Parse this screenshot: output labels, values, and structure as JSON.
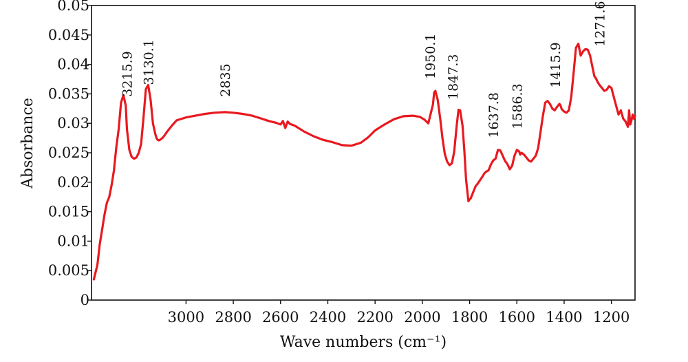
{
  "chart_data": {
    "type": "line",
    "title": "",
    "xlabel": "Wave numbers (cm⁻¹)",
    "ylabel": "Absorbance",
    "xlim": [
      3400,
      1100
    ],
    "x_reversed": true,
    "ylim": [
      0,
      0.05
    ],
    "grid": false,
    "legend": "none",
    "line_color": "#e8191f",
    "x_ticks": [
      3000,
      2800,
      2600,
      2400,
      2200,
      2000,
      1800,
      1600,
      1400,
      1200
    ],
    "x_tick_labels": [
      "3000",
      "2800",
      "2600",
      "2400",
      "2200",
      "2000",
      "1800",
      "1600",
      "1400",
      "1200"
    ],
    "y_ticks": [
      0,
      0.005,
      0.01,
      0.015,
      0.02,
      0.025,
      0.03,
      0.035,
      0.04,
      0.045,
      0.05
    ],
    "y_tick_labels": [
      "0",
      "0.005",
      "0.01",
      "0.015",
      "0.02",
      "0.025",
      "0.03",
      "0.035",
      "0.04",
      "0.045",
      "0.05"
    ],
    "series": [
      {
        "x": [
          3390,
          3375,
          3365,
          3355,
          3345,
          3335,
          3325,
          3315,
          3305,
          3295,
          3285,
          3275,
          3265,
          3255,
          3250,
          3240,
          3230,
          3220,
          3210,
          3200,
          3190,
          3180,
          3170,
          3160,
          3150,
          3140,
          3130,
          3125,
          3120,
          3115,
          3110,
          3100,
          3090,
          3080,
          3060,
          3040,
          3000,
          2960,
          2920,
          2880,
          2835,
          2800,
          2760,
          2720,
          2680,
          2650,
          2620,
          2600,
          2590,
          2580,
          2570,
          2560,
          2540,
          2500,
          2460,
          2420,
          2380,
          2340,
          2300,
          2260,
          2230,
          2200,
          2160,
          2120,
          2080,
          2040,
          2010,
          1990,
          1975,
          1965,
          1955,
          1950,
          1945,
          1935,
          1925,
          1915,
          1905,
          1895,
          1885,
          1875,
          1865,
          1855,
          1847,
          1840,
          1830,
          1822,
          1815,
          1805,
          1795,
          1785,
          1775,
          1765,
          1755,
          1745,
          1738,
          1730,
          1720,
          1710,
          1700,
          1690,
          1680,
          1670,
          1660,
          1650,
          1642,
          1637,
          1630,
          1620,
          1610,
          1600,
          1590,
          1586,
          1580,
          1570,
          1560,
          1550,
          1540,
          1530,
          1520,
          1510,
          1500,
          1490,
          1480,
          1470,
          1460,
          1450,
          1440,
          1430,
          1420,
          1416,
          1410,
          1400,
          1390,
          1380,
          1370,
          1360,
          1350,
          1340,
          1330,
          1320,
          1310,
          1300,
          1290,
          1280,
          1272,
          1265,
          1258,
          1250,
          1240,
          1230,
          1220,
          1210,
          1200,
          1190,
          1180,
          1170,
          1160,
          1150,
          1140,
          1130,
          1125,
          1120,
          1115,
          1110,
          1105,
          1100
        ],
        "y": [
          0.0035,
          0.006,
          0.0095,
          0.012,
          0.0145,
          0.0165,
          0.0175,
          0.0195,
          0.022,
          0.026,
          0.029,
          0.0335,
          0.0348,
          0.033,
          0.029,
          0.0255,
          0.0243,
          0.024,
          0.0242,
          0.025,
          0.0265,
          0.031,
          0.0358,
          0.0365,
          0.034,
          0.03,
          0.0282,
          0.0275,
          0.0272,
          0.0271,
          0.0272,
          0.0275,
          0.028,
          0.0286,
          0.0296,
          0.0305,
          0.031,
          0.0313,
          0.0316,
          0.0318,
          0.0319,
          0.0318,
          0.0316,
          0.0313,
          0.0308,
          0.0304,
          0.0301,
          0.0298,
          0.0304,
          0.0292,
          0.0303,
          0.0299,
          0.0296,
          0.0286,
          0.0278,
          0.0272,
          0.0268,
          0.0263,
          0.0262,
          0.0267,
          0.0276,
          0.0288,
          0.0298,
          0.0307,
          0.0312,
          0.0313,
          0.0311,
          0.0306,
          0.03,
          0.0316,
          0.0332,
          0.0352,
          0.0355,
          0.034,
          0.031,
          0.0275,
          0.0248,
          0.0235,
          0.0229,
          0.0232,
          0.0252,
          0.0295,
          0.0323,
          0.0322,
          0.0296,
          0.0252,
          0.0205,
          0.0168,
          0.0173,
          0.0183,
          0.0193,
          0.0198,
          0.0204,
          0.021,
          0.0215,
          0.0218,
          0.022,
          0.023,
          0.0237,
          0.024,
          0.0255,
          0.0254,
          0.0245,
          0.0236,
          0.0232,
          0.0228,
          0.0222,
          0.0228,
          0.0245,
          0.0255,
          0.0252,
          0.0247,
          0.025,
          0.0247,
          0.0242,
          0.0237,
          0.0235,
          0.024,
          0.0245,
          0.0258,
          0.0285,
          0.0312,
          0.0335,
          0.0338,
          0.0333,
          0.0325,
          0.0322,
          0.0328,
          0.0333,
          0.0331,
          0.0324,
          0.032,
          0.0318,
          0.0322,
          0.0345,
          0.0385,
          0.0428,
          0.0435,
          0.0415,
          0.0422,
          0.0426,
          0.0425,
          0.0415,
          0.0395,
          0.038,
          0.0376,
          0.037,
          0.0365,
          0.036,
          0.0355,
          0.0357,
          0.0363,
          0.036,
          0.0345,
          0.033,
          0.0315,
          0.0322,
          0.0308,
          0.0303,
          0.0294,
          0.0322,
          0.0298,
          0.0305,
          0.0315,
          0.0308,
          0.0313
        ]
      }
    ],
    "annotations": [
      {
        "text": "3215.9",
        "x": 3250,
        "y": 0.0345
      },
      {
        "text": "3130.1",
        "x": 3160,
        "y": 0.0365
      },
      {
        "text": "2835",
        "x": 2835,
        "y": 0.0345
      },
      {
        "text": "1950.1",
        "x": 1968,
        "y": 0.0375
      },
      {
        "text": "1847.3",
        "x": 1872,
        "y": 0.034
      },
      {
        "text": "1637.8",
        "x": 1700,
        "y": 0.0275
      },
      {
        "text": "1586.3",
        "x": 1600,
        "y": 0.029
      },
      {
        "text": "1415.9",
        "x": 1437,
        "y": 0.036
      },
      {
        "text": "1271.6",
        "x": 1250,
        "y": 0.043
      }
    ]
  }
}
